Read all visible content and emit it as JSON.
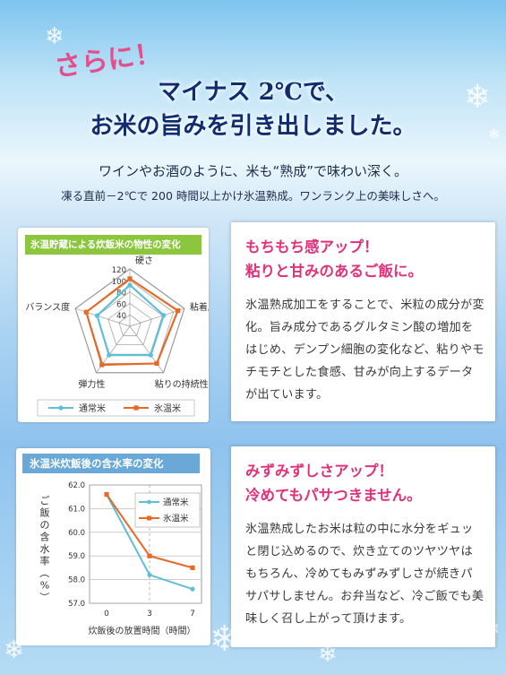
{
  "header": {
    "lead": "さらに！",
    "line1": "マイナス 2℃で、",
    "line2": "お米の旨みを引き出しました。",
    "sub1": "ワインやお酒のように、米も“熟成”で味わい深く。",
    "sub2": "凍る直前－2℃で 200 時間以上かけ氷温熟成。ワンランク上の美味しさへ。"
  },
  "section1": {
    "tag": "氷温貯蔵による炊飯米の物性の変化",
    "title1": "もちもち感アップ！",
    "title2": "粘りと甘みのあるご飯に。",
    "text": "氷温熟成加工をすることで、米粒の成分が変化。旨み成分であるグルタミン酸の増加をはじめ、デンプン細胞の変化など、粘りやモチモチとした食感、甘みが向上するデータが出ています。",
    "legend": [
      "通常米",
      "氷温米"
    ]
  },
  "section2": {
    "tag": "氷温米炊飯後の含水率の変化",
    "title1": "みずみずしさアップ！",
    "title2": "冷めてもパサつきません。",
    "text": "氷温熟成したお米は粒の中に水分をギュッと閉じ込めるので、炊き立てのツヤツヤはもちろん、冷めてもみずみずしさが続きパサパサしません。お弁当など、冷ご飯でも美味しく召し上がって頂けます。"
  },
  "colors": {
    "normal": "#5fbfd7",
    "hyoon": "#e66a26",
    "pink": "#e0317a",
    "tag1": "#8cc63f",
    "tag2": "#6aa8d8"
  },
  "chart_data": [
    {
      "type": "radar",
      "title": "氷温貯蔵による炊飯米の物性の変化",
      "axes": [
        "硬さ",
        "粘着度",
        "粘りの持続性",
        "弾力性",
        "バランス度"
      ],
      "ticks": [
        "120",
        "100",
        "80",
        "60",
        "40"
      ],
      "rmin": 20,
      "rmax": 120,
      "series": [
        {
          "name": "通常米",
          "values": [
            92,
            82,
            82,
            82,
            80
          ]
        },
        {
          "name": "氷温米",
          "values": [
            103,
            108,
            100,
            103,
            100
          ]
        }
      ]
    },
    {
      "type": "line",
      "title": "氷温米炊飯後の含水率の変化",
      "xlabel": "炊飯後の放置時間（時間）",
      "ylabel": "ご飯の含水率（%）",
      "x": [
        0,
        3,
        7
      ],
      "xticks": [
        "0",
        "3",
        "7"
      ],
      "yticks": [
        "62.0",
        "61.0",
        "60.0",
        "59.0",
        "58.0",
        "57.0"
      ],
      "ylim": [
        57.0,
        62.0
      ],
      "series": [
        {
          "name": "通常米",
          "values": [
            61.6,
            58.2,
            57.6
          ]
        },
        {
          "name": "氷温米",
          "values": [
            61.6,
            59.0,
            58.5
          ]
        }
      ]
    }
  ]
}
